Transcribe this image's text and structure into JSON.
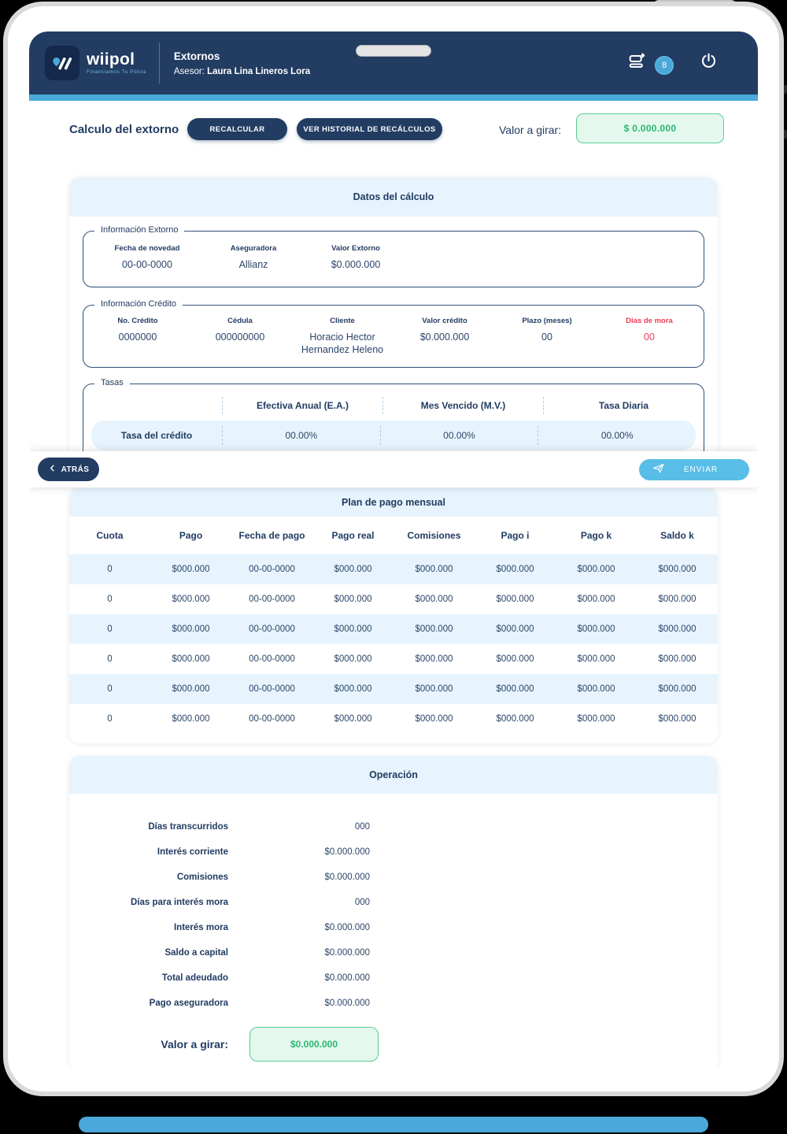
{
  "header": {
    "logo_text": "wiipol",
    "logo_tagline": "Financiamos Tu Póliza",
    "title": "Extornos",
    "advisor_label": "Asesor:",
    "advisor_name": "Laura Lina Lineros Lora",
    "notification_count": "8"
  },
  "toolbar": {
    "page_title": "Calculo del extorno",
    "recalculate_label": "RECALCULAR",
    "history_label": "VER HISTORIAL DE RECÁLCULOS",
    "payout_label": "Valor a girar:",
    "payout_value": "$ 0.000.000"
  },
  "calc_card": {
    "title": "Datos del cálculo",
    "extorno": {
      "legend": "Información Extorno",
      "fields": [
        {
          "label": "Fecha de novedad",
          "value": "00-00-0000"
        },
        {
          "label": "Aseguradora",
          "value": "Allianz"
        },
        {
          "label": "Valor Extorno",
          "value": "$0.000.000"
        }
      ]
    },
    "credito": {
      "legend": "Información Crédito",
      "fields": [
        {
          "label": "No. Crédito",
          "value": "0000000"
        },
        {
          "label": "Cédula",
          "value": "000000000"
        },
        {
          "label": "Cliente",
          "value": "Horacio Hector Hernandez Heleno"
        },
        {
          "label": "Valor crédito",
          "value": "$0.000.000"
        },
        {
          "label": "Plazo (meses)",
          "value": "00"
        },
        {
          "label": "Días de mora",
          "value": "00"
        }
      ]
    },
    "tasas": {
      "legend": "Tasas",
      "columns": [
        "Efectiva Anual (E.A.)",
        "Mes Vencido (M.V.)",
        "Tasa Diaria"
      ],
      "row_label": "Tasa del crédito",
      "row_values": [
        "00.00%",
        "00.00%",
        "00.00%"
      ]
    }
  },
  "action_bar": {
    "back_label": "ATRÁS",
    "send_label": "ENVIAR"
  },
  "payment_plan": {
    "title": "Plan de pago mensual",
    "columns": [
      "Cuota",
      "Pago",
      "Fecha de pago",
      "Pago real",
      "Comisiones",
      "Pago i",
      "Pago k",
      "Saldo k"
    ],
    "rows": [
      [
        "0",
        "$000.000",
        "00-00-0000",
        "$000.000",
        "$000.000",
        "$000.000",
        "$000.000",
        "$000.000"
      ],
      [
        "0",
        "$000.000",
        "00-00-0000",
        "$000.000",
        "$000.000",
        "$000.000",
        "$000.000",
        "$000.000"
      ],
      [
        "0",
        "$000.000",
        "00-00-0000",
        "$000.000",
        "$000.000",
        "$000.000",
        "$000.000",
        "$000.000"
      ],
      [
        "0",
        "$000.000",
        "00-00-0000",
        "$000.000",
        "$000.000",
        "$000.000",
        "$000.000",
        "$000.000"
      ],
      [
        "0",
        "$000.000",
        "00-00-0000",
        "$000.000",
        "$000.000",
        "$000.000",
        "$000.000",
        "$000.000"
      ],
      [
        "0",
        "$000.000",
        "00-00-0000",
        "$000.000",
        "$000.000",
        "$000.000",
        "$000.000",
        "$000.000"
      ]
    ]
  },
  "operation": {
    "title": "Operación",
    "rows": [
      {
        "label": "Días transcurridos",
        "value": "000"
      },
      {
        "label": "Interés corriente",
        "value": "$0.000.000"
      },
      {
        "label": "Comisiones",
        "value": "$0.000.000"
      },
      {
        "label": "Días para interés mora",
        "value": "000"
      },
      {
        "label": "Interés mora",
        "value": "$0.000.000"
      },
      {
        "label": "Saldo a capital",
        "value": "$0.000.000"
      },
      {
        "label": "Total adeudado",
        "value": "$0.000.000"
      },
      {
        "label": "Pago aseguradora",
        "value": "$0.000.000"
      }
    ],
    "total_label": "Valor a girar:",
    "total_value": "$0.000.000"
  },
  "colors": {
    "navy": "#223C62",
    "accent_blue": "#4AA9DA",
    "light_blue_bg": "#E8F4FD",
    "send_blue": "#58BEE7",
    "green_text": "#2BB673",
    "green_bg": "#E4F8ED",
    "green_border": "#5ACD92",
    "alert_red": "#EF3C55"
  }
}
